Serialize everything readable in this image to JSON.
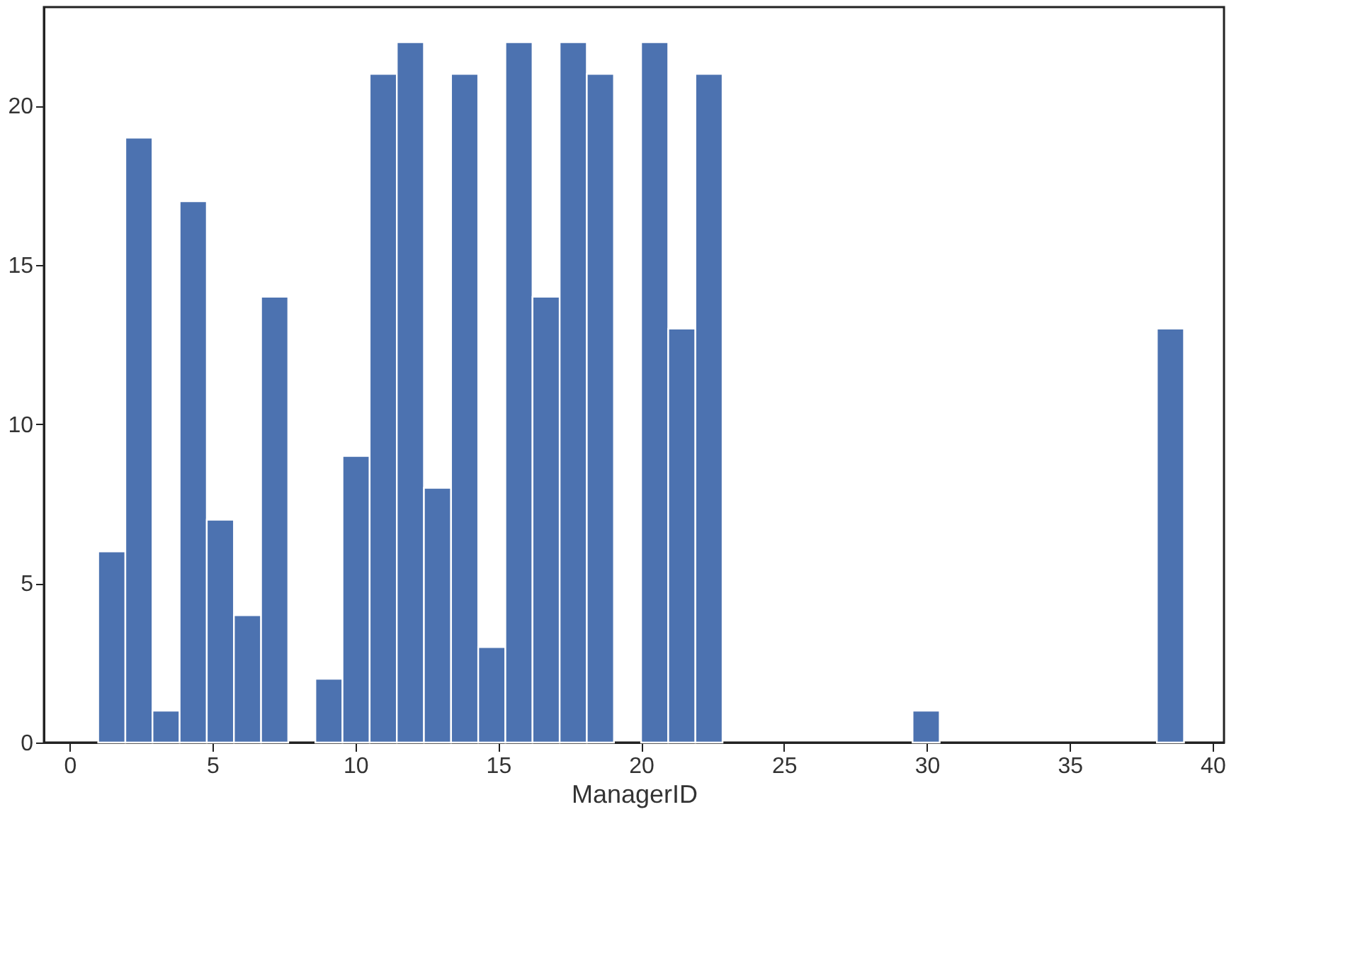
{
  "chart_data": {
    "type": "histogram",
    "xlabel": "ManagerID",
    "bins": [
      1,
      1.95,
      2.9,
      3.85,
      4.8,
      5.75,
      6.7,
      7.65,
      8.6,
      9.55,
      10.5,
      11.45,
      12.4,
      13.35,
      14.3,
      15.25,
      16.2,
      17.15,
      18.1,
      19.05,
      20,
      20.95,
      21.9,
      22.85,
      23.8,
      24.75,
      25.7,
      26.65,
      27.6,
      28.55,
      29.5,
      30.45,
      31.4,
      32.35,
      33.3,
      34.25,
      35.2,
      36.15,
      37.1,
      38.05,
      39
    ],
    "values": [
      6,
      19,
      1,
      17,
      7,
      4,
      14,
      0,
      2,
      9,
      21,
      22,
      8,
      21,
      3,
      22,
      14,
      22,
      21,
      0,
      22,
      13,
      21,
      0,
      0,
      0,
      0,
      0,
      0,
      0,
      1,
      0,
      0,
      0,
      0,
      0,
      0,
      0,
      0,
      13
    ],
    "color": "#4c72b0",
    "xlim": [
      -0.9,
      40.4
    ],
    "ylim": [
      0,
      23.1
    ],
    "xticks": [
      0,
      5,
      10,
      15,
      20,
      25,
      30,
      35,
      40
    ],
    "yticks": [
      0,
      5,
      10,
      15,
      20
    ],
    "grid": false
  }
}
